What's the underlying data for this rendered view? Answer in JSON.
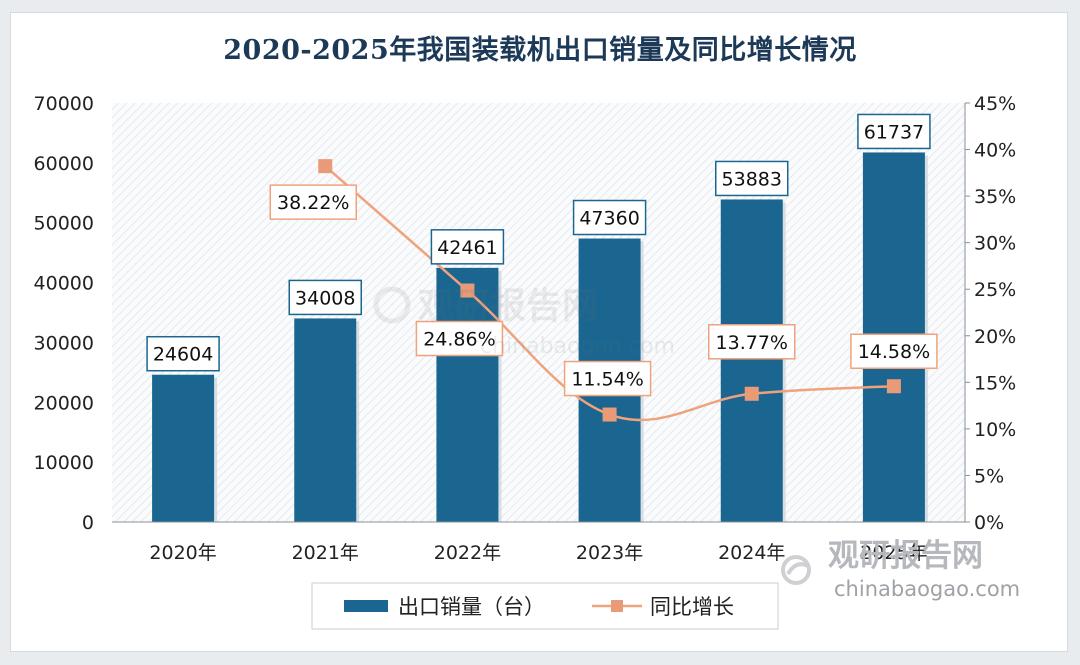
{
  "chart_data": {
    "type": "bar+line",
    "title": "2020-2025年我国装载机出口销量及同比增长情况",
    "categories": [
      "2020年",
      "2021年",
      "2022年",
      "2023年",
      "2024年",
      "2025年"
    ],
    "series": [
      {
        "name": "出口销量（台）",
        "type": "bar",
        "axis": "left",
        "values": [
          24604,
          34008,
          42461,
          47360,
          53883,
          61737
        ],
        "labels": [
          "24604",
          "34008",
          "42461",
          "47360",
          "53883",
          "61737"
        ]
      },
      {
        "name": "同比增长",
        "type": "line",
        "axis": "right",
        "values": [
          null,
          38.22,
          24.86,
          11.54,
          13.77,
          14.58
        ],
        "labels": [
          "",
          "38.22%",
          "24.86%",
          "11.54%",
          "13.77%",
          "14.58%"
        ]
      }
    ],
    "left_axis": {
      "ylim": [
        0,
        70000
      ],
      "ticks": [
        "0",
        "10000",
        "20000",
        "30000",
        "40000",
        "50000",
        "60000",
        "70000"
      ]
    },
    "right_axis": {
      "ylim": [
        0,
        45
      ],
      "ticks": [
        "0%",
        "5%",
        "10%",
        "15%",
        "20%",
        "25%",
        "30%",
        "35%",
        "40%",
        "45%"
      ]
    },
    "legend_placement": "bottom",
    "grid": false,
    "colors": {
      "bar": "#1b6690",
      "line": "#f0a27c",
      "marker": "#e89b76",
      "label_border_bar": "#1b6690",
      "label_border_line": "#f0a27c"
    }
  },
  "watermark": {
    "brand": "观研报告网",
    "url": "chinabaogao.com"
  }
}
